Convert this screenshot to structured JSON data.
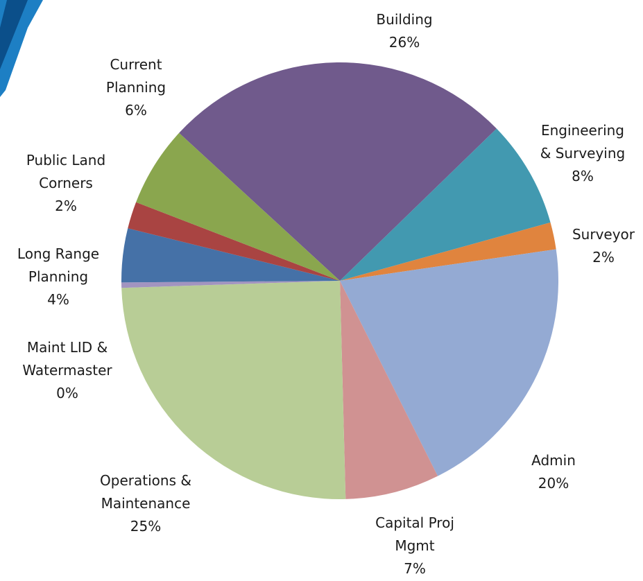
{
  "chart_data": {
    "type": "pie",
    "categories": [
      "Building",
      "Engineering\n& Surveying",
      "Surveyor",
      "Admin",
      "Capital Proj\nMgmt",
      "Operations &\nMaintenance",
      "Maint LID &\nWatermaster",
      "Long Range\nPlanning",
      "Public Land\nCorners",
      "Current\nPlanning"
    ],
    "values": [
      26,
      8,
      2,
      20,
      7,
      25,
      0.4,
      4,
      2,
      6
    ],
    "value_labels": [
      "26%",
      "8%",
      "2%",
      "20%",
      "7%",
      "25%",
      "0%",
      "4%",
      "2%",
      "6%"
    ],
    "colors": [
      "#705a8c",
      "#4299b0",
      "#e0843e",
      "#94aad3",
      "#d09292",
      "#b8cd96",
      "#a294c0",
      "#4571a7",
      "#a94442",
      "#8aa64e"
    ]
  }
}
